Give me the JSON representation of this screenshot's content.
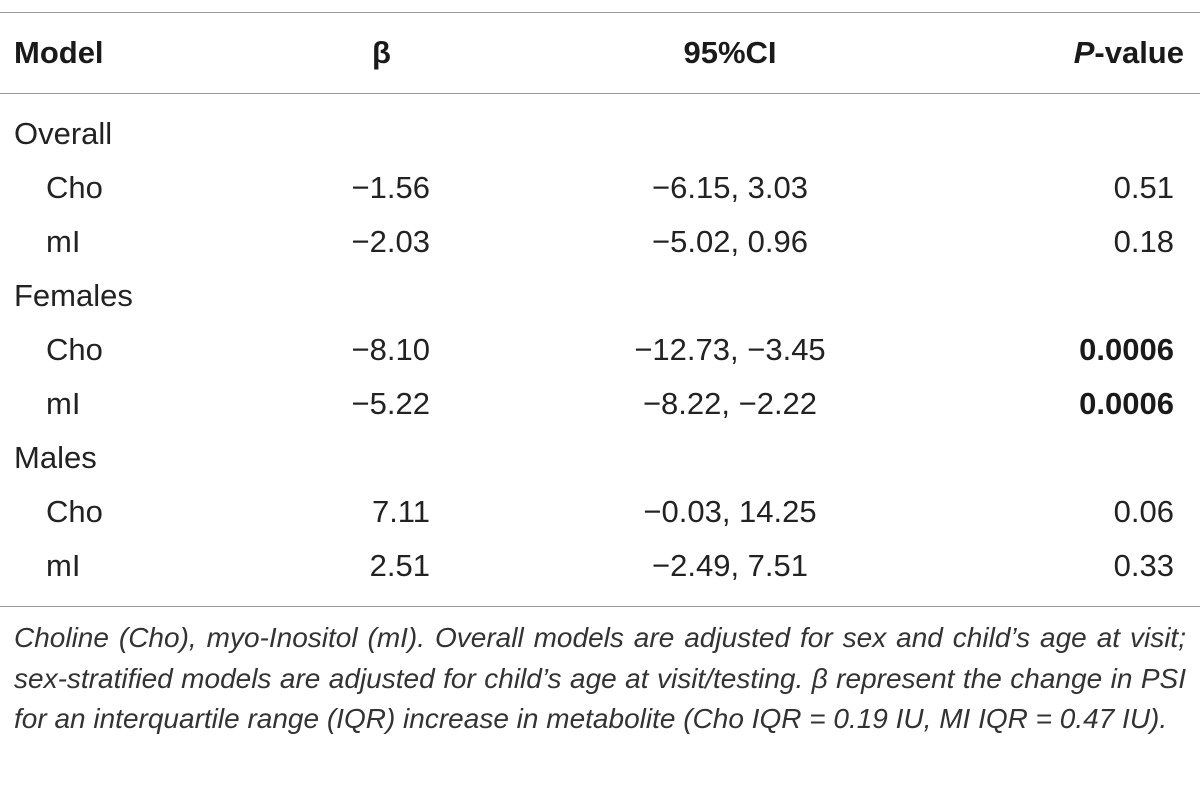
{
  "table": {
    "headers": {
      "model": "Model",
      "beta": "β",
      "ci": "95%CI",
      "p_italic": "P",
      "p_rest": "-value"
    },
    "groups": [
      {
        "label": "Overall",
        "rows": [
          {
            "metabolite": "Cho",
            "beta": "−1.56",
            "ci": "−6.15, 3.03",
            "p": "0.51",
            "significant": false
          },
          {
            "metabolite": "mI",
            "beta": "−2.03",
            "ci": "−5.02, 0.96",
            "p": "0.18",
            "significant": false
          }
        ]
      },
      {
        "label": "Females",
        "rows": [
          {
            "metabolite": "Cho",
            "beta": "−8.10",
            "ci": "−12.73, −3.45",
            "p": "0.0006",
            "significant": true
          },
          {
            "metabolite": "mI",
            "beta": "−5.22",
            "ci": "−8.22, −2.22",
            "p": "0.0006",
            "significant": true
          }
        ]
      },
      {
        "label": "Males",
        "rows": [
          {
            "metabolite": "Cho",
            "beta": "7.11",
            "ci": "−0.03, 14.25",
            "p": "0.06",
            "significant": false
          },
          {
            "metabolite": "mI",
            "beta": "2.51",
            "ci": "−2.49, 7.51",
            "p": "0.33",
            "significant": false
          }
        ]
      }
    ],
    "footnote": "Choline (Cho), myo-Inositol (mI). Overall models are adjusted for sex and child’s age at visit; sex-stratified models are adjusted for child’s age at visit/testing. β represent the change in PSI for an interquartile range (IQR) increase in metabolite (Cho IQR = 0.19 IU, MI IQR = 0.47 IU)."
  }
}
